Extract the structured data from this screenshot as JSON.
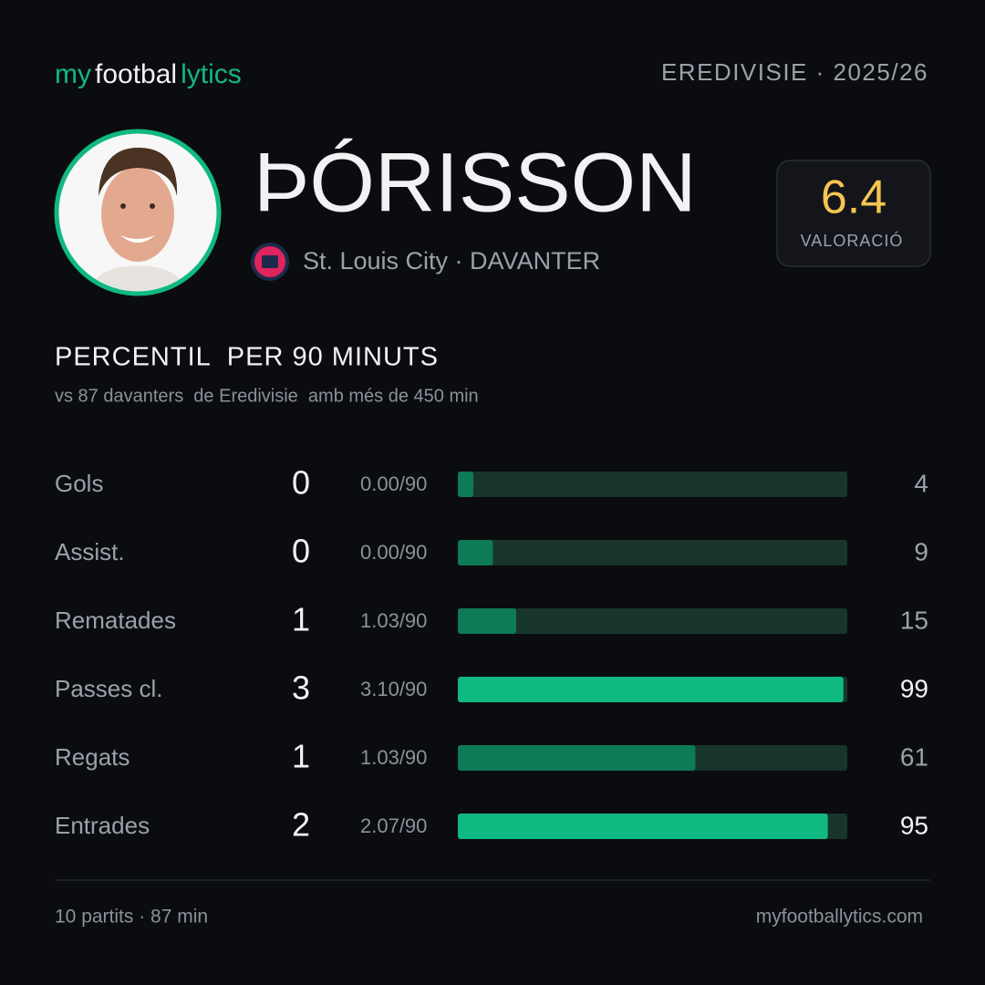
{
  "brand": {
    "my": "my",
    "footbal": "footbal",
    "lytics": "lytics"
  },
  "league": "EREDIVISIE · 2025/26",
  "player": {
    "name": "ÞÓRISSON",
    "subtitle": "St. Louis City · DAVANTER"
  },
  "rating": {
    "value": 6.4,
    "label": "VALORACIÓ"
  },
  "section": {
    "title": "PERCENTIL  PER 90 MINUTS",
    "subtitle": "vs 87 davanters  de Eredivisie  amb més de 450 min"
  },
  "stats": {
    "xlim": [
      0,
      100
    ],
    "rows": [
      {
        "label": "Gols",
        "value": 0,
        "per90": "0.00/90",
        "percentile": 4,
        "color": "#0e7a56"
      },
      {
        "label": "Assist.",
        "value": 0,
        "per90": "0.00/90",
        "percentile": 9,
        "color": "#0e7a56"
      },
      {
        "label": "Rematades",
        "value": 1,
        "per90": "1.03/90",
        "percentile": 15,
        "color": "#0e7a56"
      },
      {
        "label": "Passes cl.",
        "value": 3,
        "per90": "3.10/90",
        "percentile": 99,
        "color": "#10b981"
      },
      {
        "label": "Regats",
        "value": 1,
        "per90": "1.03/90",
        "percentile": 61,
        "color": "#0e7a56"
      },
      {
        "label": "Entrades",
        "value": 2,
        "per90": "2.07/90",
        "percentile": 95,
        "color": "#10b981"
      }
    ]
  },
  "footer": {
    "left": "10 partits · 87 min",
    "right": "myfootballytics.com"
  }
}
